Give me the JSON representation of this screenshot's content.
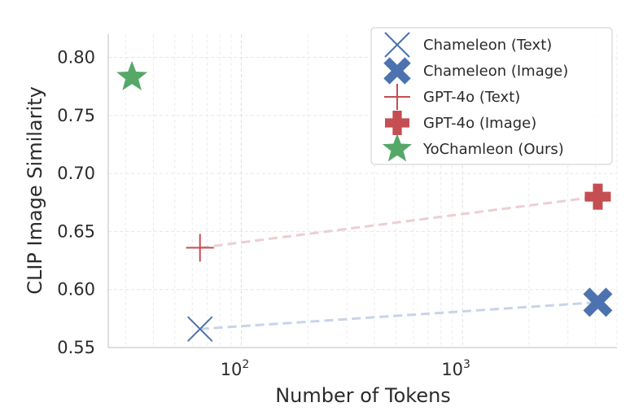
{
  "chart_data": {
    "type": "scatter",
    "xlabel": "Number of Tokens",
    "ylabel": "CLIP Image Similarity",
    "xscale": "log",
    "xlim": [
      25,
      5000
    ],
    "ylim": [
      0.55,
      0.82
    ],
    "x_ticks": [
      {
        "value": 100,
        "base": "10",
        "exp": "2"
      },
      {
        "value": 1000,
        "base": "10",
        "exp": "3"
      }
    ],
    "y_ticks": [
      "0.55",
      "0.60",
      "0.65",
      "0.70",
      "0.75",
      "0.80"
    ],
    "grid": true,
    "legend_position": "top-right",
    "series": [
      {
        "name": "Chameleon (Text)",
        "x": 65,
        "y": 0.566,
        "marker": "x-thin",
        "color": "#4c72b0"
      },
      {
        "name": "Chameleon (Image)",
        "x": 4096,
        "y": 0.589,
        "marker": "x-bold",
        "color": "#4c72b0"
      },
      {
        "name": "GPT-4o (Text)",
        "x": 65,
        "y": 0.636,
        "marker": "plus-thin",
        "color": "#c44e52"
      },
      {
        "name": "GPT-4o (Image)",
        "x": 4096,
        "y": 0.68,
        "marker": "plus-bold",
        "color": "#c44e52"
      },
      {
        "name": "YoChamleon (Ours)",
        "x": 32,
        "y": 0.783,
        "marker": "star",
        "color": "#55a868"
      }
    ],
    "connectors": [
      {
        "from": 0,
        "to": 1,
        "color": "#c9d3e8"
      },
      {
        "from": 2,
        "to": 3,
        "color": "#ebcfd1"
      }
    ]
  }
}
